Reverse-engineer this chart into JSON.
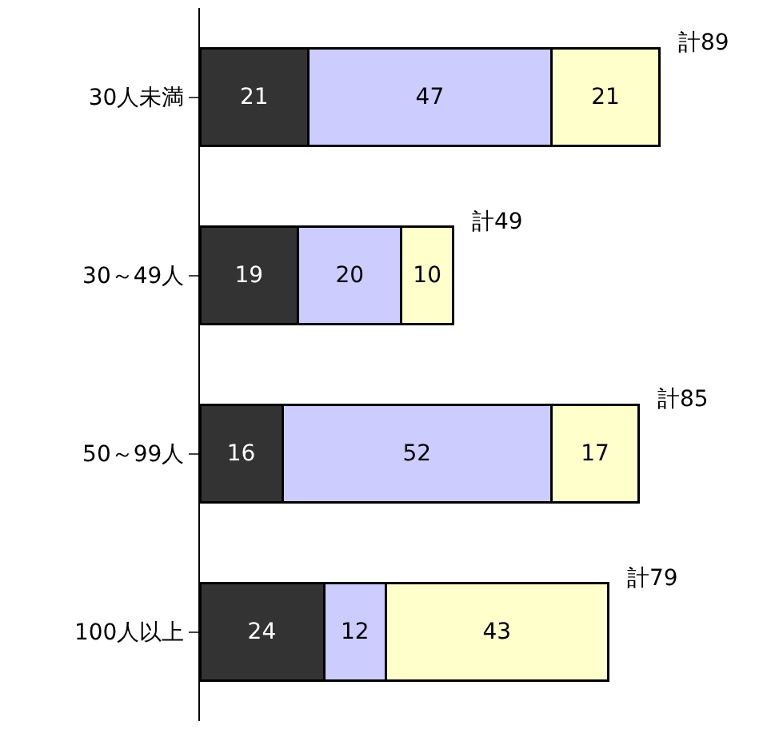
{
  "chart_data": {
    "type": "bar",
    "orientation": "horizontal",
    "stacked": true,
    "data_labels": true,
    "categories": [
      "30人未満",
      "30～49人",
      "50～99人",
      "100人以上"
    ],
    "series": [
      {
        "color": "#333333",
        "values": [
          21,
          19,
          16,
          24
        ]
      },
      {
        "color": "#ccccff",
        "values": [
          47,
          20,
          52,
          12
        ]
      },
      {
        "color": "#ffffcc",
        "values": [
          21,
          10,
          17,
          43
        ]
      }
    ],
    "totals": [
      "計89",
      "計49",
      "計85",
      "計79"
    ]
  }
}
